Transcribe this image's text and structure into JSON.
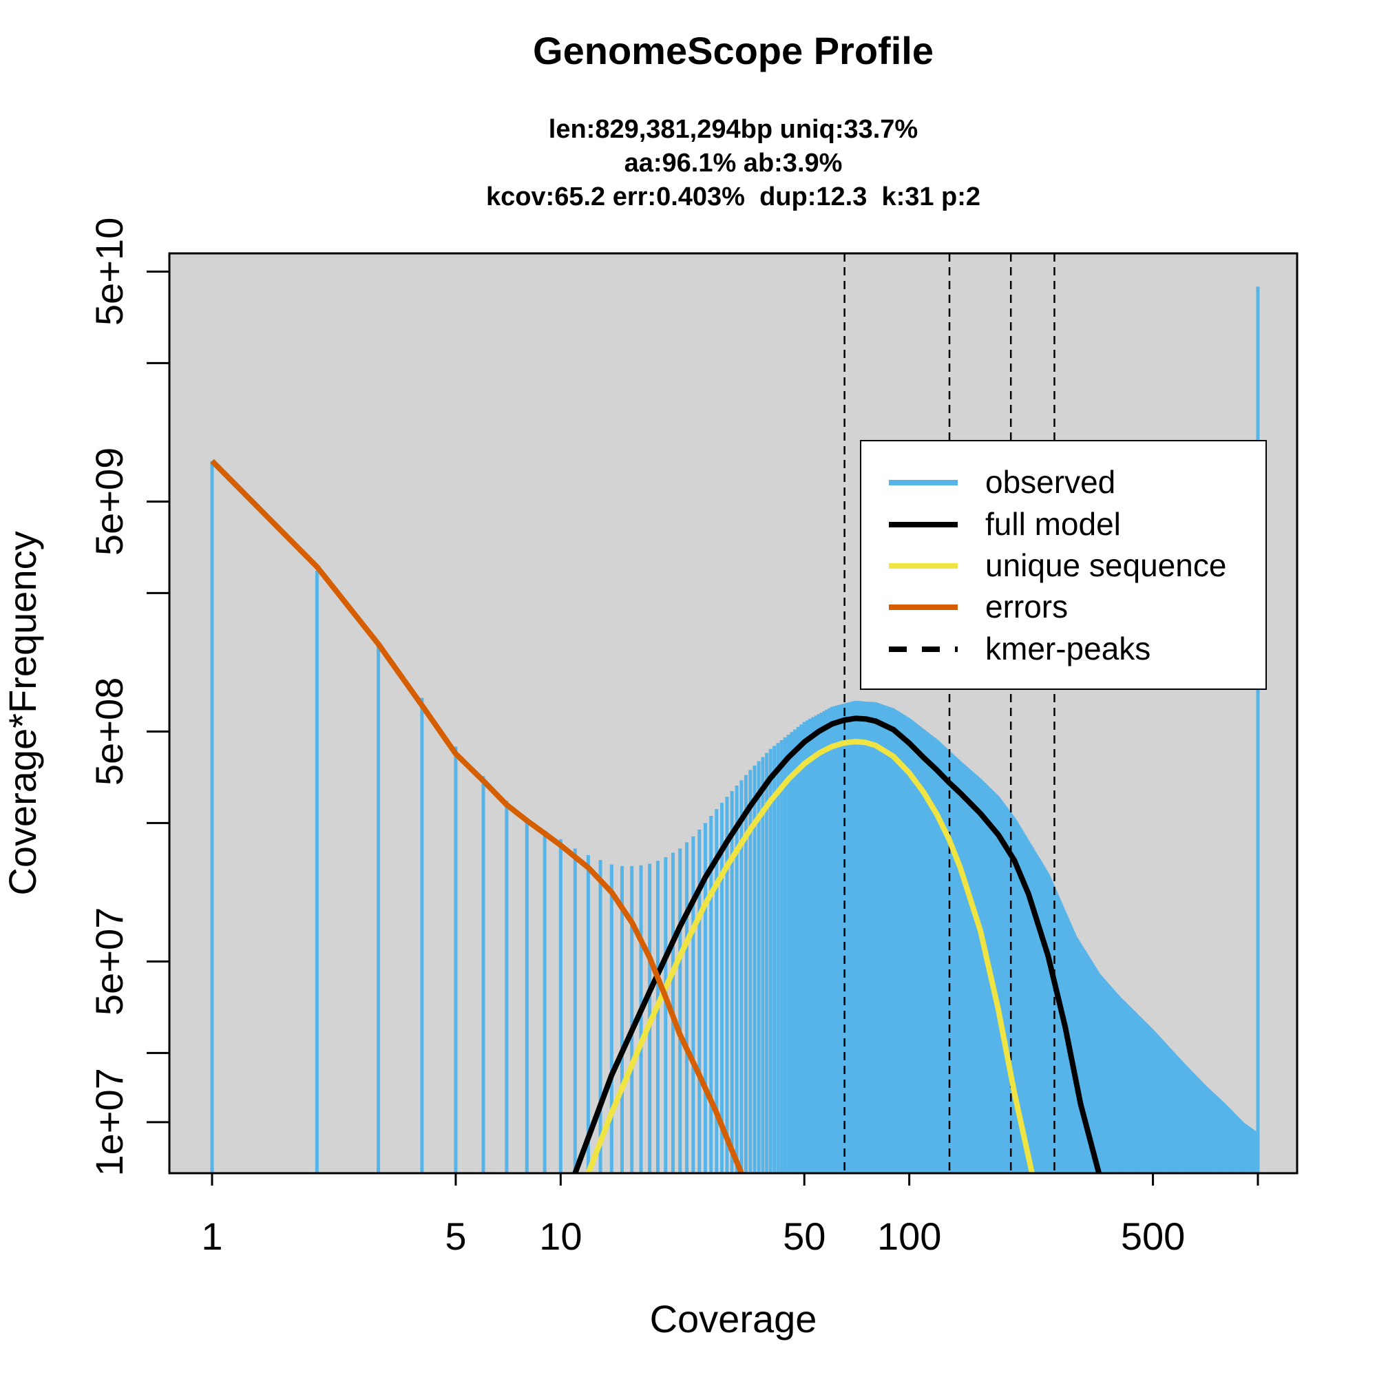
{
  "chart_data": {
    "type": "bar",
    "title": "GenomeScope Profile",
    "subtitle_lines": [
      "len:829,381,294bp uniq:33.7%",
      "aa:96.1% ab:3.9%",
      "kcov:65.2 err:0.403%  dup:12.3  k:31 p:2"
    ],
    "xlabel": "Coverage",
    "ylabel": "Coverage*Frequency",
    "x_scale": "log",
    "y_scale": "log",
    "xlim": [
      1,
      1000
    ],
    "ylim": [
      6000000,
      60000000000
    ],
    "x_ticks": [
      {
        "value": 1,
        "label": "1"
      },
      {
        "value": 5,
        "label": "5"
      },
      {
        "value": 10,
        "label": "10"
      },
      {
        "value": 50,
        "label": "50"
      },
      {
        "value": 100,
        "label": "100"
      },
      {
        "value": 500,
        "label": "500"
      },
      {
        "value": 1000,
        "label": ""
      }
    ],
    "y_ticks": [
      {
        "value": 10000000,
        "label": "1e+07"
      },
      {
        "value": 20000000,
        "label": ""
      },
      {
        "value": 50000000,
        "label": "5e+07"
      },
      {
        "value": 200000000,
        "label": ""
      },
      {
        "value": 500000000,
        "label": "5e+08"
      },
      {
        "value": 2000000000,
        "label": ""
      },
      {
        "value": 5000000000,
        "label": "5e+09"
      },
      {
        "value": 20000000000,
        "label": ""
      },
      {
        "value": 50000000000,
        "label": "5e+10"
      }
    ],
    "observed": [
      [
        1,
        7500000000.0
      ],
      [
        2,
        2500000000.0
      ],
      [
        3,
        1200000000.0
      ],
      [
        4,
        700000000.0
      ],
      [
        5,
        430000000.0
      ],
      [
        6,
        320000000.0
      ],
      [
        7,
        250000000.0
      ],
      [
        8,
        210000000.0
      ],
      [
        9,
        185000000.0
      ],
      [
        10,
        170000000.0
      ],
      [
        11,
        155000000.0
      ],
      [
        12,
        145000000.0
      ],
      [
        13,
        138000000.0
      ],
      [
        14,
        132000000.0
      ],
      [
        15,
        130000000.0
      ],
      [
        16,
        130000000.0
      ],
      [
        17,
        131000000.0
      ],
      [
        18,
        133000000.0
      ],
      [
        19,
        137000000.0
      ],
      [
        20,
        142000000.0
      ],
      [
        22,
        155000000.0
      ],
      [
        24,
        175000000.0
      ],
      [
        26,
        200000000.0
      ],
      [
        28,
        230000000.0
      ],
      [
        30,
        260000000.0
      ],
      [
        35,
        340000000.0
      ],
      [
        40,
        420000000.0
      ],
      [
        50,
        550000000.0
      ],
      [
        60,
        640000000.0
      ],
      [
        70,
        680000000.0
      ],
      [
        80,
        670000000.0
      ],
      [
        90,
        630000000.0
      ],
      [
        100,
        570000000.0
      ],
      [
        120,
        460000000.0
      ],
      [
        140,
        370000000.0
      ],
      [
        160,
        310000000.0
      ],
      [
        180,
        260000000.0
      ],
      [
        200,
        210000000.0
      ],
      [
        250,
        120000000.0
      ],
      [
        300,
        64000000.0
      ],
      [
        350,
        44000000.0
      ],
      [
        400,
        35000000.0
      ],
      [
        500,
        25000000.0
      ],
      [
        600,
        18500000.0
      ],
      [
        700,
        14500000.0
      ],
      [
        800,
        12000000.0
      ],
      [
        900,
        10000000.0
      ],
      [
        990,
        9000000.0
      ],
      [
        1000,
        43000000000.0
      ]
    ],
    "series": [
      {
        "name": "full model",
        "color": "#000000",
        "points": [
          [
            11,
            6000000.0
          ],
          [
            14,
            16000000.0
          ],
          [
            18,
            37000000.0
          ],
          [
            22,
            71000000.0
          ],
          [
            26,
            116000000.0
          ],
          [
            30,
            166000000.0
          ],
          [
            35,
            237000000.0
          ],
          [
            40,
            314000000.0
          ],
          [
            45,
            386000000.0
          ],
          [
            50,
            450000000.0
          ],
          [
            55,
            500000000.0
          ],
          [
            60,
            539000000.0
          ],
          [
            65,
            560000000.0
          ],
          [
            70,
            570000000.0
          ],
          [
            75,
            567000000.0
          ],
          [
            80,
            555000000.0
          ],
          [
            90,
            510000000.0
          ],
          [
            100,
            445000000.0
          ],
          [
            110,
            385000000.0
          ],
          [
            120,
            340000000.0
          ],
          [
            130,
            300000000.0
          ],
          [
            140,
            270000000.0
          ],
          [
            160,
            220000000.0
          ],
          [
            180,
            178000000.0
          ],
          [
            200,
            138000000.0
          ],
          [
            220,
            98000000.0
          ],
          [
            250,
            53000000.0
          ],
          [
            280,
            26000000.0
          ],
          [
            310,
            12000000.0
          ],
          [
            350,
            6000000.0
          ]
        ]
      },
      {
        "name": "unique sequence",
        "color": "#f0e442",
        "points": [
          [
            12,
            6000000.0
          ],
          [
            14,
            11000000.0
          ],
          [
            18,
            27000000.0
          ],
          [
            22,
            53000000.0
          ],
          [
            26,
            89000000.0
          ],
          [
            30,
            130000000.0
          ],
          [
            35,
            188000000.0
          ],
          [
            40,
            250000000.0
          ],
          [
            45,
            310000000.0
          ],
          [
            50,
            362000000.0
          ],
          [
            55,
            402000000.0
          ],
          [
            60,
            430000000.0
          ],
          [
            65,
            446000000.0
          ],
          [
            70,
            452000000.0
          ],
          [
            75,
            448000000.0
          ],
          [
            80,
            435000000.0
          ],
          [
            90,
            390000000.0
          ],
          [
            100,
            330000000.0
          ],
          [
            110,
            272000000.0
          ],
          [
            120,
            218000000.0
          ],
          [
            130,
            170000000.0
          ],
          [
            140,
            128000000.0
          ],
          [
            160,
            68000000.0
          ],
          [
            180,
            31000000.0
          ],
          [
            200,
            13500000.0
          ],
          [
            225,
            6000000.0
          ]
        ]
      },
      {
        "name": "errors",
        "color": "#d55e00",
        "points": [
          [
            1,
            7500000000.0
          ],
          [
            2,
            2600000000.0
          ],
          [
            3,
            1200000000.0
          ],
          [
            4,
            650000000.0
          ],
          [
            5,
            400000000.0
          ],
          [
            6,
            305000000.0
          ],
          [
            7,
            240000000.0
          ],
          [
            8,
            205000000.0
          ],
          [
            9,
            180000000.0
          ],
          [
            10,
            160000000.0
          ],
          [
            12,
            128000000.0
          ],
          [
            14,
            100000000.0
          ],
          [
            16,
            74000000.0
          ],
          [
            18,
            52000000.0
          ],
          [
            20,
            35000000.0
          ],
          [
            22,
            24000000.0
          ],
          [
            25,
            16000000.0
          ],
          [
            28,
            11000000.0
          ],
          [
            30,
            8500000.0
          ],
          [
            33,
            6000000.0
          ]
        ]
      }
    ],
    "kmer_peaks": [
      65.2,
      130.4,
      195.6,
      260.8
    ],
    "colors": {
      "observed": "#56b4e9",
      "full_model": "#000000",
      "unique_sequence": "#f0e442",
      "errors": "#d55e00",
      "kmer_peaks": "#000000",
      "plot_background": "#d3d3d3"
    },
    "grid": false,
    "legend": {
      "position": "top-right",
      "entries": [
        {
          "label": "observed",
          "color": "#56b4e9",
          "style": "solid"
        },
        {
          "label": "full model",
          "color": "#000000",
          "style": "solid"
        },
        {
          "label": "unique sequence",
          "color": "#f0e442",
          "style": "solid"
        },
        {
          "label": "errors",
          "color": "#d55e00",
          "style": "solid"
        },
        {
          "label": "kmer-peaks",
          "color": "#000000",
          "style": "dashed"
        }
      ]
    }
  }
}
